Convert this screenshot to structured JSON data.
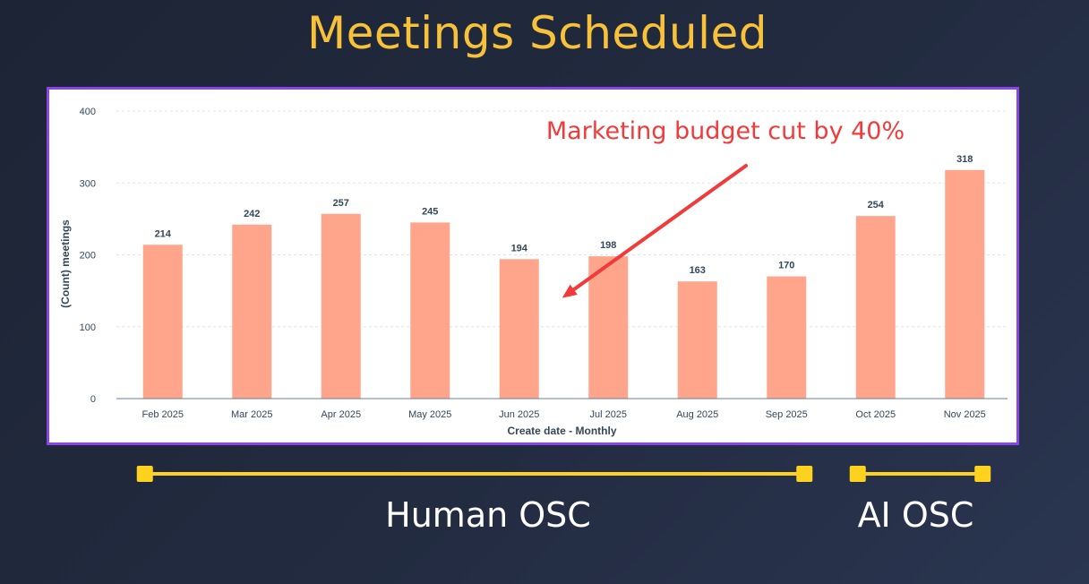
{
  "title": "Meetings Scheduled",
  "chart_data": {
    "type": "bar",
    "categories": [
      "Feb 2025",
      "Mar 2025",
      "Apr 2025",
      "May 2025",
      "Jun 2025",
      "Jul 2025",
      "Aug 2025",
      "Sep 2025",
      "Oct 2025",
      "Nov 2025"
    ],
    "values": [
      214,
      242,
      257,
      245,
      194,
      198,
      163,
      170,
      254,
      318
    ],
    "xlabel": "Create date - Monthly",
    "ylabel": "(Count) meetings",
    "ylim": [
      0,
      400
    ],
    "yticks": [
      0,
      100,
      200,
      300,
      400
    ],
    "grid": true,
    "bar_color": "#ffa58c",
    "annotation": {
      "text": "Marketing budget cut by 40%",
      "color": "#f23a3a",
      "arrow_to_category": "Jun 2025",
      "arrow_to_value": 140
    }
  },
  "phases": [
    {
      "label": "Human OSC",
      "from": "Feb 2025",
      "to": "Sep 2025"
    },
    {
      "label": "AI OSC",
      "from": "Oct 2025",
      "to": "Nov 2025"
    }
  ],
  "colors": {
    "title": "#f7c23a",
    "phase_bar": "#ffd21f",
    "frame_border": "#8a45e6"
  }
}
